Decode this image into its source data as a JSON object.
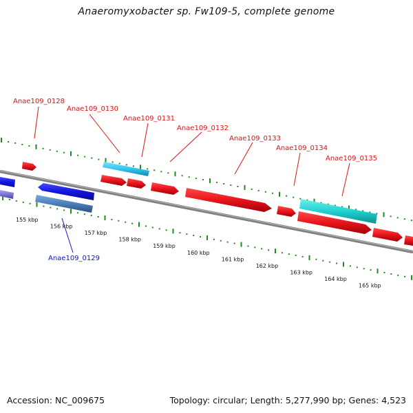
{
  "title": "Anaeromyxobacter sp. Fw109-5, complete genome",
  "footer": {
    "accession": "Accession: NC_009675",
    "topology": "Topology: circular; Length: 5,277,990 bp; Genes: 4,523"
  },
  "colors": {
    "backbone": "#808080",
    "tick_marks": "#1f8a1f",
    "plus_strand_gene": "#e8141c",
    "minus_strand_gene": "#1414e0",
    "highlight_cyan": "#33c4ee",
    "highlight_teal": "#22d0d0",
    "steel_blue": "#4a7fb8",
    "lavender": "#7a72d8",
    "label_red": "#e01010",
    "label_blue": "#1010d8"
  },
  "scale_labels": [
    "155 kbp",
    "156 kbp",
    "157 kbp",
    "158 kbp",
    "159 kbp",
    "160 kbp",
    "161 kbp",
    "162 kbp",
    "163 kbp",
    "164 kbp",
    "165 kbp"
  ],
  "gene_labels": [
    {
      "text": "Anae109_0128",
      "strand": "plus"
    },
    {
      "text": "Anae109_0130",
      "strand": "plus"
    },
    {
      "text": "Anae109_0131",
      "strand": "plus"
    },
    {
      "text": "Anae109_0132",
      "strand": "plus"
    },
    {
      "text": "Anae109_0133",
      "strand": "plus"
    },
    {
      "text": "Anae109_0134",
      "strand": "plus"
    },
    {
      "text": "Anae109_0135",
      "strand": "plus"
    },
    {
      "text": "Anae109_0129",
      "strand": "minus"
    }
  ]
}
